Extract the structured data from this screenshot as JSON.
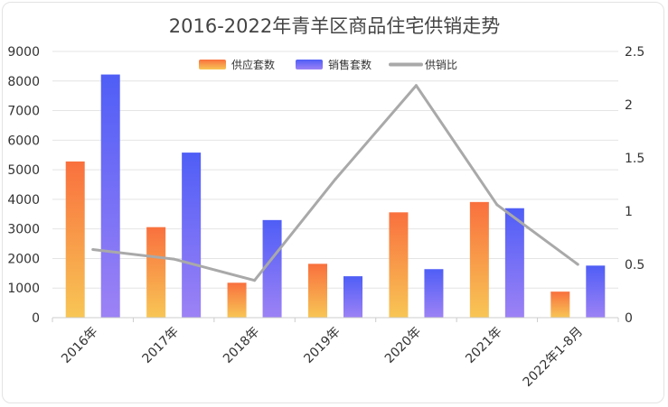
{
  "chart_data": {
    "type": "bar",
    "title": "2016-2022年青羊区商品住宅供销走势",
    "categories": [
      "2016年",
      "2017年",
      "2018年",
      "2019年",
      "2020年",
      "2021年",
      "2022年1-8月"
    ],
    "series": [
      {
        "name": "供应套数",
        "type": "bar",
        "axis": "left",
        "values": [
          5280,
          3060,
          1180,
          1820,
          3560,
          3910,
          880
        ]
      },
      {
        "name": "销售套数",
        "type": "bar",
        "axis": "left",
        "values": [
          8220,
          5580,
          3300,
          1400,
          1640,
          3700,
          1760
        ]
      },
      {
        "name": "供销比",
        "type": "line",
        "axis": "right",
        "values": [
          0.64,
          0.55,
          0.35,
          1.3,
          2.18,
          1.06,
          0.5
        ]
      }
    ],
    "y_left": {
      "min": 0,
      "max": 9000,
      "ticks": [
        "0",
        "1000",
        "2000",
        "3000",
        "4000",
        "5000",
        "6000",
        "7000",
        "8000",
        "9000"
      ]
    },
    "y_right": {
      "min": 0,
      "max": 2.5,
      "ticks": [
        "0",
        "0.5",
        "1",
        "1.5",
        "2",
        "2.5"
      ]
    },
    "grid": true,
    "legend_position": "top-center",
    "colors": {
      "supply_top": "#f9703e",
      "supply_bottom": "#f8c655",
      "sales_top": "#4f5ef6",
      "sales_bottom": "#9d82f5",
      "ratio_line": "#a9a9a9",
      "grid": "#e4e4e4",
      "axis_text": "#333333",
      "title_text": "#444444"
    }
  }
}
